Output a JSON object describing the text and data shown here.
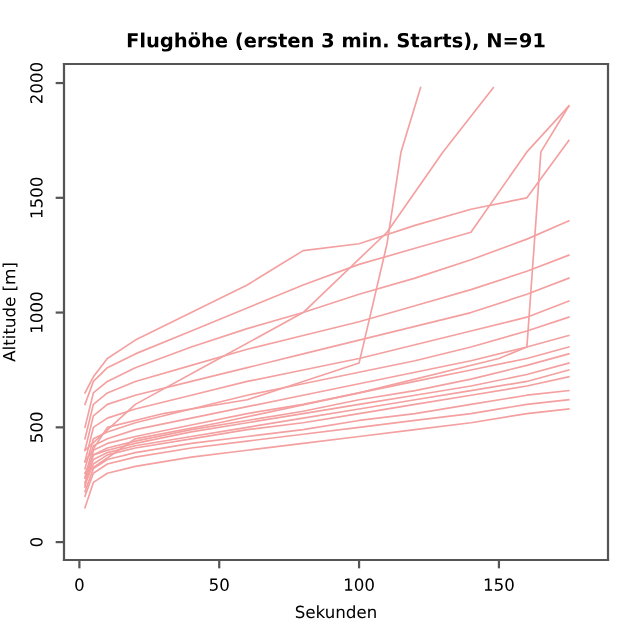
{
  "chart_data": {
    "type": "line",
    "title": "Flughöhe (ersten 3 min. Starts), N=91",
    "xlabel": "Sekunden",
    "ylabel": "Altitude [m]",
    "xlim": [
      -5.5,
      189
    ],
    "ylim": [
      -78,
      2083
    ],
    "xticks": [
      0,
      50,
      100,
      150
    ],
    "yticks": [
      0,
      500,
      1000,
      1500,
      2000
    ],
    "grid": false,
    "legend": false,
    "marker": "none",
    "line_style": "solid",
    "x": [
      2,
      5,
      10,
      20,
      40,
      60,
      80,
      100,
      120,
      140,
      160,
      175
    ],
    "series": [
      {
        "color": "#f4a0a0",
        "values": [
          150,
          260,
          300,
          330,
          370,
          400,
          430,
          460,
          490,
          520,
          560,
          580
        ]
      },
      {
        "color": "#f4a0a0",
        "values": [
          200,
          300,
          340,
          370,
          410,
          440,
          470,
          500,
          530,
          560,
          600,
          620
        ]
      },
      {
        "color": "#f4a0a0",
        "values": [
          220,
          320,
          360,
          390,
          430,
          460,
          490,
          530,
          560,
          600,
          640,
          660
        ]
      },
      {
        "color": "#f4a0a0",
        "values": [
          250,
          340,
          380,
          410,
          450,
          490,
          520,
          560,
          600,
          640,
          680,
          720
        ]
      },
      {
        "color": "#f4a0a0",
        "values": [
          260,
          360,
          390,
          420,
          460,
          500,
          540,
          580,
          620,
          660,
          700,
          750
        ]
      },
      {
        "color": "#f4a0a0",
        "values": [
          280,
          380,
          400,
          430,
          480,
          520,
          560,
          600,
          640,
          680,
          730,
          780
        ]
      },
      {
        "color": "#f4a0a0",
        "values": [
          300,
          380,
          410,
          440,
          490,
          530,
          570,
          620,
          660,
          710,
          770,
          820
        ]
      },
      {
        "color": "#f4a0a0",
        "values": [
          240,
          400,
          430,
          460,
          510,
          560,
          600,
          650,
          700,
          750,
          800,
          850
        ]
      },
      {
        "color": "#f4a0a0",
        "values": [
          280,
          420,
          450,
          490,
          540,
          590,
          640,
          690,
          740,
          790,
          850,
          900
        ]
      },
      {
        "color": "#f4a0a0",
        "values": [
          320,
          450,
          480,
          520,
          580,
          640,
          690,
          740,
          790,
          850,
          920,
          980
        ]
      },
      {
        "color": "#f4a0a0",
        "values": [
          350,
          500,
          540,
          580,
          640,
          700,
          750,
          800,
          860,
          920,
          980,
          1050
        ]
      },
      {
        "color": "#f4a0a0",
        "values": [
          400,
          550,
          600,
          640,
          700,
          760,
          820,
          880,
          940,
          1000,
          1080,
          1150
        ]
      },
      {
        "color": "#f4a0a0",
        "values": [
          450,
          600,
          650,
          700,
          770,
          840,
          900,
          960,
          1030,
          1100,
          1180,
          1250
        ]
      },
      {
        "color": "#f4a0a0",
        "values": [
          500,
          650,
          700,
          760,
          850,
          930,
          1000,
          1080,
          1150,
          1230,
          1320,
          1400
        ]
      },
      {
        "color": "#f4a0a0",
        "values": [
          600,
          700,
          760,
          820,
          920,
          1020,
          1120,
          1210,
          1280,
          1350,
          1700,
          1900
        ]
      },
      {
        "color": "#f4a0a0",
        "values": [
          650,
          720,
          800,
          880,
          1000,
          1120,
          1270,
          1300,
          1380,
          1450,
          1500,
          1750
        ]
      },
      {
        "color": "#f4a0a0",
        "x": [
          2,
          10,
          30,
          60,
          80,
          100,
          110,
          115,
          122
        ],
        "values": [
          350,
          500,
          560,
          620,
          700,
          780,
          1300,
          1700,
          1980
        ]
      },
      {
        "color": "#f4a0a0",
        "x": [
          2,
          20,
          50,
          80,
          110,
          130,
          148
        ],
        "values": [
          400,
          600,
          800,
          1000,
          1350,
          1700,
          1980
        ]
      },
      {
        "color": "#f4a0a0",
        "x": [
          2,
          20,
          50,
          100,
          150,
          160,
          165,
          175
        ],
        "values": [
          300,
          450,
          520,
          650,
          800,
          850,
          1700,
          1900
        ]
      }
    ]
  }
}
